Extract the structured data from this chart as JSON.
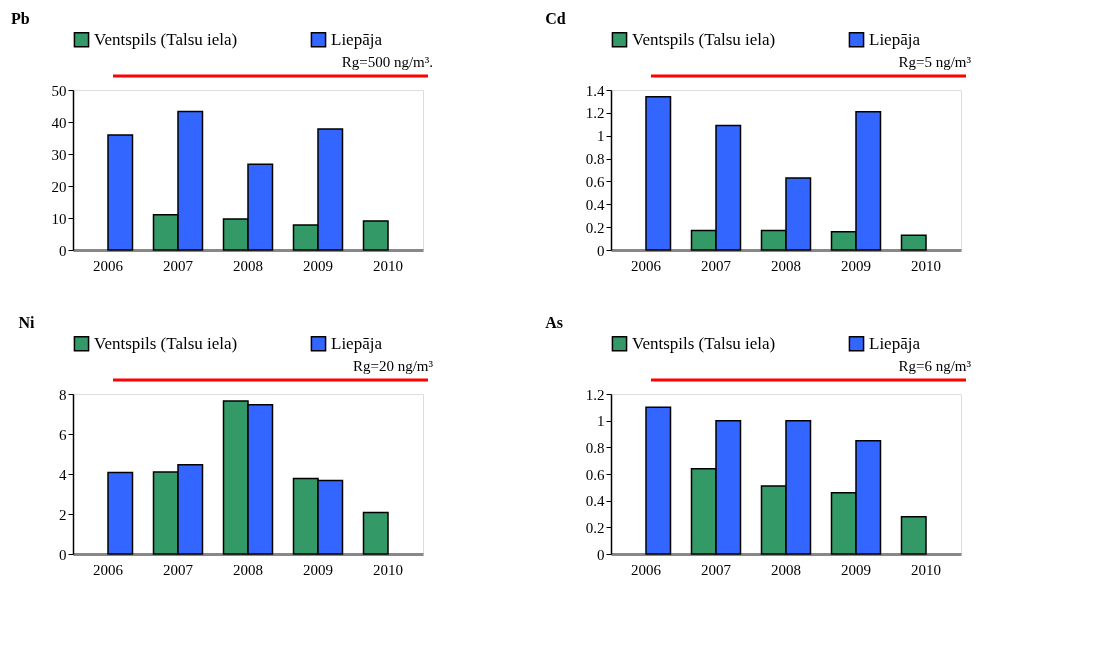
{
  "chart_data": [
    {
      "type": "bar",
      "title": "Pb",
      "categories": [
        "2006",
        "2007",
        "2008",
        "2009",
        "2010"
      ],
      "series": [
        {
          "name": "Ventspils (Talsu iela)",
          "color": "#339966",
          "values": [
            null,
            11.0,
            9.7,
            7.8,
            9.1
          ]
        },
        {
          "name": "Liepāja",
          "color": "#3366ff",
          "values": [
            35.9,
            43.3,
            26.8,
            37.8,
            null
          ]
        }
      ],
      "ylim": [
        0,
        50
      ],
      "yticks": [
        0,
        10,
        20,
        30,
        40,
        50
      ],
      "legend": "top",
      "annotations": [
        "Rg=500 ng/m³."
      ]
    },
    {
      "type": "bar",
      "title": "Cd",
      "categories": [
        "2006",
        "2007",
        "2008",
        "2009",
        "2010"
      ],
      "series": [
        {
          "name": "Ventspils (Talsu iela)",
          "color": "#339966",
          "values": [
            null,
            0.17,
            0.17,
            0.16,
            0.13
          ]
        },
        {
          "name": "Liepāja",
          "color": "#3366ff",
          "values": [
            1.34,
            1.09,
            0.63,
            1.21,
            null
          ]
        }
      ],
      "ylim": [
        0,
        1.4
      ],
      "yticks": [
        0,
        0.2,
        0.4,
        0.6,
        0.8,
        1,
        1.2,
        1.4
      ],
      "legend": "top",
      "annotations": [
        "Rg=5 ng/m³"
      ]
    },
    {
      "type": "bar",
      "title": "Ni",
      "categories": [
        "2006",
        "2007",
        "2008",
        "2009",
        "2010"
      ],
      "series": [
        {
          "name": "Ventspils (Talsu iela)",
          "color": "#339966",
          "values": [
            null,
            4.1,
            7.65,
            3.77,
            2.08
          ]
        },
        {
          "name": "Liepāja",
          "color": "#3366ff",
          "values": [
            4.07,
            4.46,
            7.46,
            3.67,
            null
          ]
        }
      ],
      "ylim": [
        0,
        8
      ],
      "yticks": [
        0,
        2,
        4,
        6,
        8
      ],
      "legend": "top",
      "annotations": [
        "Rg=20 ng/m³"
      ]
    },
    {
      "type": "bar",
      "title": "As",
      "categories": [
        "2006",
        "2007",
        "2008",
        "2009",
        "2010"
      ],
      "series": [
        {
          "name": "Ventspils (Talsu iela)",
          "color": "#339966",
          "values": [
            null,
            0.64,
            0.51,
            0.46,
            0.28
          ]
        },
        {
          "name": "Liepāja",
          "color": "#3366ff",
          "values": [
            1.1,
            1.0,
            1.0,
            0.85,
            null
          ]
        }
      ],
      "ylim": [
        0,
        1.2
      ],
      "yticks": [
        0,
        0.2,
        0.4,
        0.6,
        0.8,
        1,
        1.2
      ],
      "legend": "top",
      "annotations": [
        "Rg=6 ng/m³"
      ]
    }
  ]
}
